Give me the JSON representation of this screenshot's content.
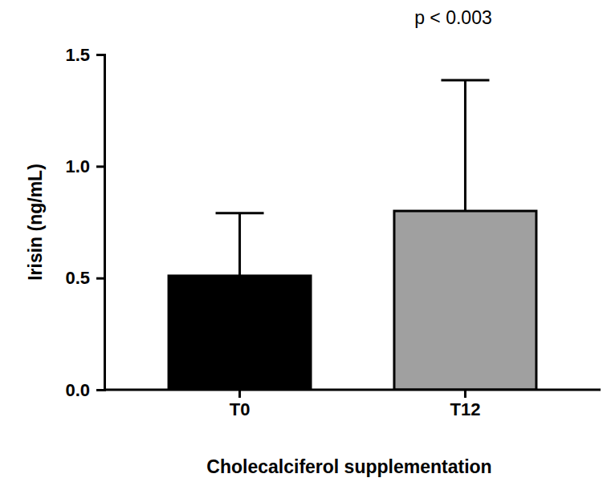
{
  "chart_data": {
    "type": "bar",
    "categories": [
      "T0",
      "T12"
    ],
    "values": [
      0.51,
      0.8
    ],
    "errors": [
      0.28,
      0.585
    ],
    "colors": [
      "#000000",
      "#a0a0a0"
    ],
    "ylim": [
      0,
      1.5
    ],
    "yticks": [
      {
        "value": 0,
        "label": "0.0"
      },
      0.5,
      {
        "value": 1,
        "label": "1.0"
      },
      1.5
    ],
    "y_label": "Irisin (ng/mL)",
    "x_label": "Cholecalciferol supplementation",
    "annotation": "p < 0.003",
    "grid": false
  }
}
